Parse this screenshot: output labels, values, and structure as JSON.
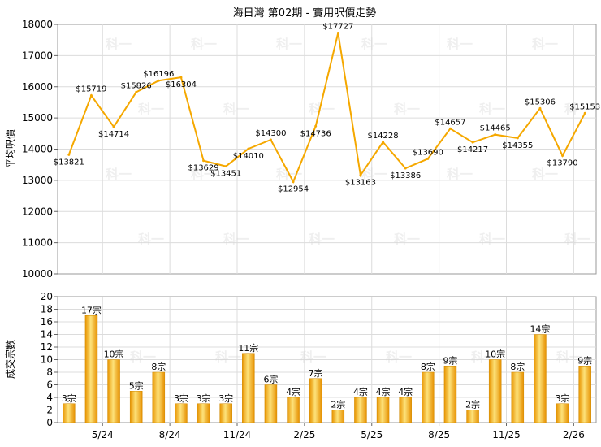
{
  "chart_data": [
    {
      "type": "line",
      "title": "海日灣 第02期 - 實用呎價走勢",
      "ylabel": "平均呎價",
      "ylim": [
        10000,
        18000
      ],
      "yticks": [
        "10000",
        "11000",
        "12000",
        "13000",
        "14000",
        "15000",
        "16000",
        "17000",
        "18000"
      ],
      "values": [
        13821,
        15719,
        14714,
        15826,
        16196,
        16304,
        13629,
        13451,
        14010,
        14300,
        12954,
        14736,
        17727,
        13163,
        14228,
        13386,
        13690,
        14657,
        14217,
        14465,
        14355,
        15306,
        13790,
        15153
      ],
      "data_labels": [
        "$13821",
        "$15719",
        "$14714",
        "$15826",
        "$16196",
        "$16304",
        "$13629",
        "$13451",
        "$14010",
        "$14300",
        "$12954",
        "$14736",
        "$17727",
        "$13163",
        "$14228",
        "$13386",
        "$13690",
        "$14657",
        "$14217",
        "$14465",
        "$14355",
        "$15306",
        "$13790",
        "$15153"
      ],
      "color": "#f5a800",
      "grid": true
    },
    {
      "type": "bar",
      "ylabel": "成交宗數",
      "ylim": [
        0,
        20
      ],
      "yticks": [
        "0",
        "2",
        "4",
        "6",
        "8",
        "10",
        "12",
        "14",
        "16",
        "18",
        "20"
      ],
      "values": [
        3,
        17,
        10,
        5,
        8,
        3,
        3,
        3,
        11,
        6,
        4,
        7,
        2,
        4,
        4,
        4,
        8,
        9,
        2,
        10,
        8,
        14,
        3,
        9
      ],
      "data_labels": [
        "3宗",
        "17宗",
        "10宗",
        "5宗",
        "8宗",
        "3宗",
        "3宗",
        "3宗",
        "11宗",
        "6宗",
        "4宗",
        "7宗",
        "2宗",
        "4宗",
        "4宗",
        "4宗",
        "8宗",
        "9宗",
        "2宗",
        "10宗",
        "8宗",
        "14宗",
        "3宗",
        "9宗"
      ],
      "x_tick_labels": [
        "5/24",
        "8/24",
        "11/24",
        "2/25",
        "5/25",
        "8/25",
        "11/25",
        "2/26"
      ],
      "color": "#f5a800",
      "grid": true
    }
  ],
  "watermark": "科一"
}
